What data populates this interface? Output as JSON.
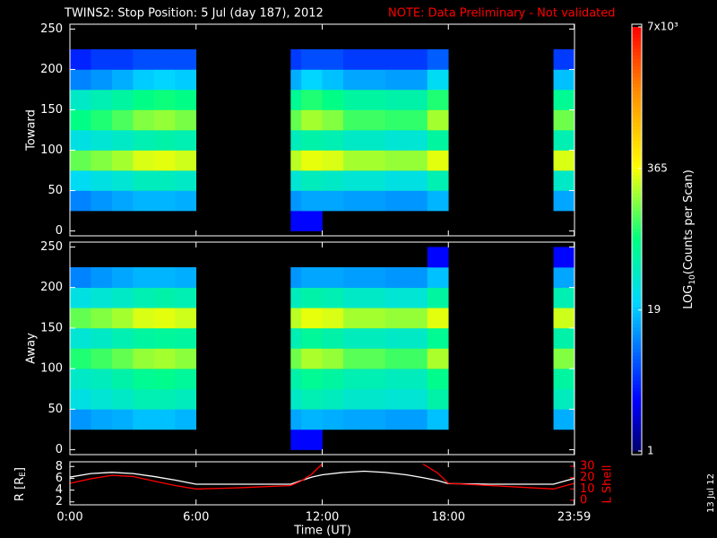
{
  "chart_data": [
    {
      "type": "heatmap",
      "title": "TWINS2: Stop Position:  5 Jul (day 187), 2012",
      "note": "NOTE: Data Preliminary - Not validated",
      "stamp": "13 Jul 12",
      "ylabel": "Toward",
      "xlim": [
        0,
        24
      ],
      "ylim": [
        -6,
        256
      ],
      "yticks": [
        0,
        50,
        100,
        150,
        200,
        250
      ],
      "x_bins": [
        0,
        1,
        2,
        3,
        4,
        5,
        6,
        7,
        8,
        9,
        10.5,
        11,
        12,
        13,
        14,
        15,
        16,
        17,
        18,
        19,
        20,
        21,
        22,
        23,
        24
      ],
      "y_bins": [
        0,
        25,
        50,
        75,
        100,
        125,
        150,
        175,
        200,
        225
      ],
      "z": [
        [
          null,
          null,
          null,
          null,
          null,
          null,
          null,
          null,
          null,
          null,
          3,
          3,
          null,
          null,
          null,
          null,
          null,
          null,
          null,
          null,
          null,
          null,
          null,
          null
        ],
        [
          10,
          12,
          14,
          16,
          16,
          15,
          null,
          null,
          null,
          null,
          12,
          14,
          14,
          13,
          13,
          12,
          12,
          16,
          null,
          null,
          null,
          null,
          null,
          14
        ],
        [
          25,
          30,
          35,
          45,
          45,
          40,
          null,
          null,
          null,
          null,
          35,
          45,
          40,
          35,
          35,
          30,
          30,
          50,
          null,
          null,
          null,
          null,
          null,
          40
        ],
        [
          150,
          180,
          220,
          300,
          320,
          280,
          null,
          null,
          null,
          null,
          250,
          330,
          300,
          220,
          220,
          200,
          200,
          320,
          null,
          null,
          null,
          null,
          null,
          300
        ],
        [
          30,
          35,
          40,
          50,
          55,
          50,
          null,
          null,
          null,
          null,
          45,
          55,
          50,
          40,
          40,
          35,
          35,
          60,
          null,
          null,
          null,
          null,
          null,
          50
        ],
        [
          80,
          100,
          130,
          180,
          200,
          170,
          null,
          null,
          null,
          null,
          150,
          220,
          180,
          120,
          120,
          110,
          110,
          220,
          null,
          null,
          null,
          null,
          null,
          160
        ],
        [
          40,
          50,
          60,
          80,
          90,
          80,
          null,
          null,
          null,
          null,
          70,
          100,
          80,
          60,
          60,
          55,
          55,
          100,
          null,
          null,
          null,
          null,
          null,
          70
        ],
        [
          10,
          12,
          15,
          20,
          22,
          20,
          null,
          null,
          null,
          null,
          15,
          22,
          18,
          14,
          14,
          13,
          13,
          25,
          null,
          null,
          null,
          null,
          null,
          18
        ],
        [
          4,
          5,
          5,
          6,
          6,
          6,
          null,
          null,
          null,
          null,
          5,
          6,
          6,
          5,
          5,
          5,
          5,
          7,
          null,
          null,
          null,
          null,
          null,
          5
        ]
      ],
      "colorbar": {
        "label": "LOG",
        "label_sub": "10",
        "label_tail": "(Counts per Scan)",
        "log": true,
        "lim": [
          1,
          7000
        ],
        "ticks": [
          {
            "value": 7000,
            "label": "7x10³"
          },
          365,
          19,
          1
        ]
      }
    },
    {
      "type": "heatmap",
      "ylabel": "Away",
      "xlim": [
        0,
        24
      ],
      "ylim": [
        -6,
        256
      ],
      "yticks": [
        0,
        50,
        100,
        150,
        200,
        250
      ],
      "x_bins": [
        0,
        1,
        2,
        3,
        4,
        5,
        6,
        7,
        8,
        9,
        10.5,
        11,
        12,
        13,
        14,
        15,
        16,
        17,
        18,
        19,
        20,
        21,
        22,
        23,
        24
      ],
      "y_bins": [
        0,
        25,
        50,
        75,
        100,
        125,
        150,
        175,
        200,
        225,
        250
      ],
      "z": [
        [
          null,
          null,
          null,
          null,
          null,
          null,
          null,
          null,
          null,
          null,
          3,
          3,
          null,
          null,
          null,
          null,
          null,
          null,
          null,
          null,
          null,
          null,
          null,
          null
        ],
        [
          12,
          14,
          15,
          18,
          18,
          16,
          null,
          null,
          null,
          null,
          14,
          16,
          15,
          14,
          14,
          13,
          13,
          18,
          null,
          null,
          null,
          null,
          null,
          15
        ],
        [
          30,
          35,
          40,
          50,
          50,
          45,
          null,
          null,
          null,
          null,
          40,
          50,
          45,
          38,
          38,
          35,
          35,
          55,
          null,
          null,
          null,
          null,
          null,
          45
        ],
        [
          40,
          45,
          55,
          70,
          75,
          65,
          null,
          null,
          null,
          null,
          55,
          70,
          60,
          50,
          50,
          45,
          45,
          75,
          null,
          null,
          null,
          null,
          null,
          60
        ],
        [
          100,
          120,
          150,
          200,
          220,
          190,
          null,
          null,
          null,
          null,
          160,
          230,
          200,
          140,
          140,
          120,
          120,
          230,
          null,
          null,
          null,
          null,
          null,
          180
        ],
        [
          35,
          40,
          50,
          60,
          65,
          60,
          null,
          null,
          null,
          null,
          50,
          65,
          55,
          45,
          45,
          40,
          40,
          70,
          null,
          null,
          null,
          null,
          null,
          55
        ],
        [
          150,
          180,
          220,
          300,
          320,
          280,
          null,
          null,
          null,
          null,
          250,
          330,
          300,
          220,
          220,
          200,
          200,
          320,
          null,
          null,
          null,
          null,
          null,
          280
        ],
        [
          30,
          35,
          40,
          50,
          55,
          50,
          null,
          null,
          null,
          null,
          45,
          55,
          50,
          40,
          40,
          35,
          35,
          60,
          null,
          null,
          null,
          null,
          null,
          50
        ],
        [
          10,
          12,
          14,
          16,
          16,
          15,
          null,
          null,
          null,
          null,
          12,
          14,
          14,
          13,
          13,
          12,
          12,
          18,
          null,
          null,
          null,
          null,
          null,
          14
        ],
        [
          null,
          null,
          null,
          null,
          null,
          null,
          null,
          null,
          null,
          null,
          null,
          null,
          null,
          null,
          null,
          null,
          null,
          3,
          null,
          null,
          null,
          null,
          null,
          3
        ]
      ]
    },
    {
      "type": "line",
      "ylabel": "R [R",
      "ylabel_sub": "E",
      "ylabel_tail": "]",
      "y2label": "L Shell",
      "xlabel": "Time (UT)",
      "xlim": [
        0,
        24
      ],
      "xticks": [
        {
          "value": 0,
          "label": "0:00"
        },
        {
          "value": 6,
          "label": "6:00"
        },
        {
          "value": 12,
          "label": "12:00"
        },
        {
          "value": 18,
          "label": "18:00"
        },
        {
          "value": 23.983,
          "label": "23:59"
        }
      ],
      "ylim": [
        1.5,
        8.8
      ],
      "yticks": [
        2,
        4,
        6,
        8
      ],
      "y2lim": [
        -4,
        34
      ],
      "y2ticks": [
        0,
        10,
        20,
        30
      ],
      "x": [
        0,
        1,
        2,
        3,
        4,
        5,
        6,
        8,
        10.5,
        11,
        11.5,
        12,
        13,
        14,
        15,
        16,
        16.8,
        17.5,
        18,
        20,
        22,
        23,
        24
      ],
      "series": [
        {
          "color": "#ffffff",
          "values": [
            6.2,
            6.8,
            7.0,
            6.8,
            6.3,
            5.7,
            5.0,
            5.0,
            5.0,
            5.6,
            6.2,
            6.6,
            7.0,
            7.2,
            7.0,
            6.6,
            6.1,
            5.6,
            5.1,
            5.0,
            5.0,
            5.0,
            6.0
          ]
        },
        {
          "color": "#ff0000",
          "axis": "y2",
          "values": [
            15,
            19,
            22,
            21,
            17,
            13,
            10,
            11,
            13,
            17,
            23,
            32,
            null,
            null,
            null,
            null,
            32,
            24,
            15,
            13,
            11,
            10,
            15
          ]
        }
      ]
    }
  ]
}
